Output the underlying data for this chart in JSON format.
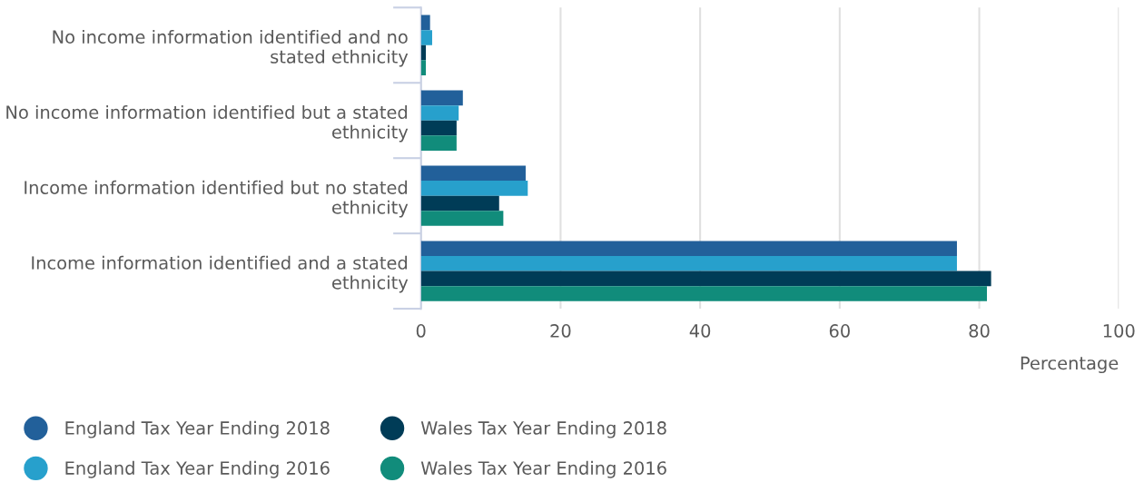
{
  "chart_data": {
    "type": "bar",
    "orientation": "horizontal",
    "categories": [
      "No income information identified and no stated ethnicity",
      "No income information identified but a stated ethnicity",
      "Income information identified but no stated ethnicity",
      "Income information identified and a stated ethnicity"
    ],
    "series": [
      {
        "name": "England Tax Year Ending 2018",
        "color": "#22609a",
        "values": [
          1.3,
          6.0,
          15.0,
          76.8
        ]
      },
      {
        "name": "England Tax Year Ending 2016",
        "color": "#27a0cc",
        "values": [
          1.6,
          5.4,
          15.3,
          76.8
        ]
      },
      {
        "name": "Wales Tax Year Ending 2018",
        "color": "#003c57",
        "values": [
          0.7,
          5.1,
          11.2,
          81.7
        ]
      },
      {
        "name": "Wales Tax Year Ending 2016",
        "color": "#118c7b",
        "values": [
          0.7,
          5.1,
          11.8,
          81.1
        ]
      }
    ],
    "xlabel": "Percentage",
    "xlim": [
      0,
      100
    ],
    "xticks": [
      0,
      20,
      40,
      60,
      80,
      100
    ],
    "grid": "x",
    "legend": "bottom"
  }
}
